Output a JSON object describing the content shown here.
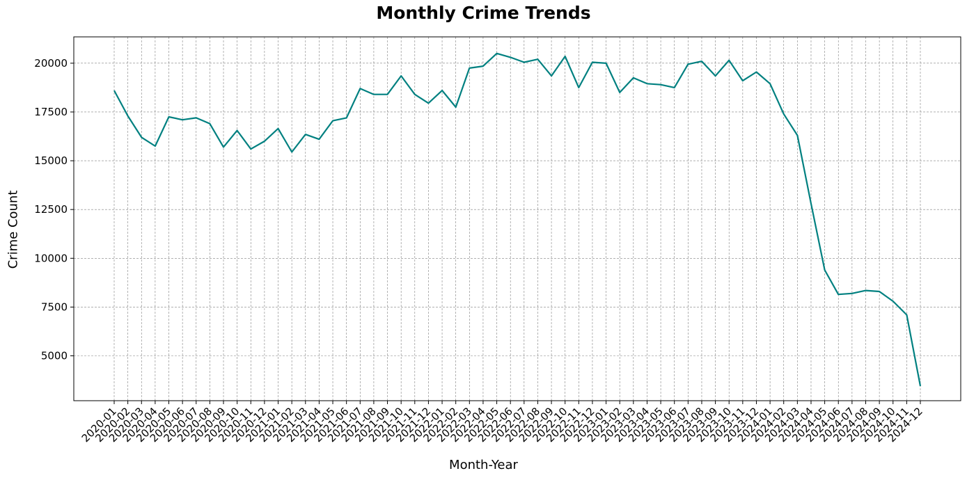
{
  "chart_data": {
    "type": "line",
    "title": "Monthly Crime Trends",
    "xlabel": "Month-Year",
    "ylabel": "Crime Count",
    "grid": true,
    "line_color": "#008080",
    "grid_color": "#808080",
    "ylim": [
      2700,
      21350
    ],
    "yticks": [
      5000,
      7500,
      10000,
      12500,
      15000,
      17500,
      20000
    ],
    "categories": [
      "2020-01",
      "2020-02",
      "2020-03",
      "2020-04",
      "2020-05",
      "2020-06",
      "2020-07",
      "2020-08",
      "2020-09",
      "2020-10",
      "2020-11",
      "2020-12",
      "2021-01",
      "2021-02",
      "2021-03",
      "2021-04",
      "2021-05",
      "2021-06",
      "2021-07",
      "2021-08",
      "2021-09",
      "2021-10",
      "2021-11",
      "2021-12",
      "2022-01",
      "2022-02",
      "2022-03",
      "2022-04",
      "2022-05",
      "2022-06",
      "2022-07",
      "2022-08",
      "2022-09",
      "2022-10",
      "2022-11",
      "2022-12",
      "2023-01",
      "2023-02",
      "2023-03",
      "2023-04",
      "2023-05",
      "2023-06",
      "2023-07",
      "2023-08",
      "2023-09",
      "2023-10",
      "2023-11",
      "2023-12",
      "2024-01",
      "2024-02",
      "2024-03",
      "2024-04",
      "2024-05",
      "2024-06",
      "2024-07",
      "2024-08",
      "2024-09",
      "2024-10",
      "2024-11",
      "2024-12"
    ],
    "values": [
      18600,
      17300,
      16200,
      15750,
      17250,
      17100,
      17200,
      16900,
      15700,
      16550,
      15600,
      16000,
      16650,
      15450,
      16350,
      16100,
      17050,
      17200,
      18700,
      18400,
      18400,
      19350,
      18400,
      17950,
      18600,
      17750,
      19750,
      19850,
      20500,
      20300,
      20050,
      20200,
      19350,
      20350,
      18750,
      20050,
      20000,
      18500,
      19250,
      18950,
      18900,
      18750,
      19950,
      20100,
      19350,
      20150,
      19100,
      19550,
      18950,
      17400,
      16300,
      12800,
      9400,
      8150,
      8200,
      8350,
      8300,
      7800,
      7100,
      3450
    ]
  }
}
